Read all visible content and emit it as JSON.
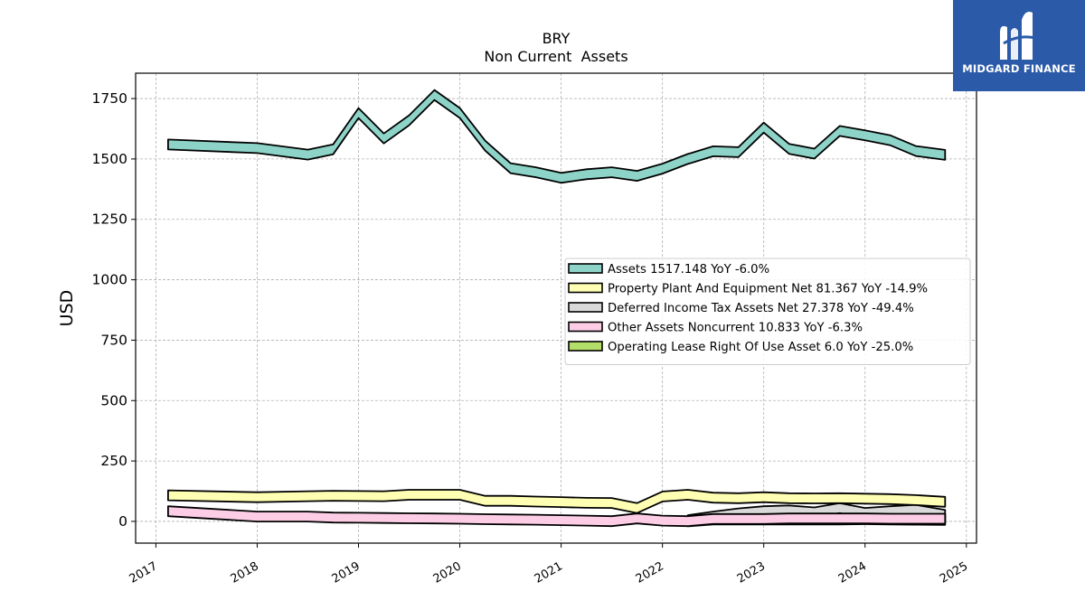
{
  "chart_data": {
    "type": "area",
    "title": "BRY",
    "subtitle": "Non Current  Assets",
    "ylabel": "USD",
    "xlabel": "",
    "xlim": [
      2016.8,
      2025.1
    ],
    "ylim": [
      -90,
      1855
    ],
    "x_ticks": [
      "2017",
      "2018",
      "2019",
      "2020",
      "2021",
      "2022",
      "2023",
      "2024",
      "2025"
    ],
    "y_ticks": [
      0,
      250,
      500,
      750,
      1000,
      1250,
      1500,
      1750
    ],
    "grid": true,
    "legend_position": "center-right",
    "x": [
      2017.12,
      2018.0,
      2018.5,
      2018.75,
      2019.0,
      2019.25,
      2019.5,
      2019.75,
      2020.0,
      2020.25,
      2020.5,
      2020.75,
      2021.0,
      2021.25,
      2021.5,
      2021.75,
      2022.0,
      2022.25,
      2022.5,
      2022.75,
      2023.0,
      2023.25,
      2023.5,
      2023.75,
      2024.0,
      2024.25,
      2024.5,
      2024.79
    ],
    "series": [
      {
        "name": "Assets  1517.148 YoY -6.0%",
        "color": "#8dd3c7",
        "values": [
          1560,
          1545,
          1518,
          1540,
          1690,
          1585,
          1660,
          1765,
          1690,
          1555,
          1462,
          1445,
          1422,
          1437,
          1445,
          1430,
          1460,
          1500,
          1532,
          1528,
          1630,
          1542,
          1522,
          1616,
          1598,
          1577,
          1533,
          1517
        ]
      },
      {
        "name": "Property Plant And Equipment Net  81.367 YoY -14.9%",
        "color": "#ffffb3",
        "values": [
          108,
          100,
          104,
          106,
          105,
          104,
          110,
          110,
          110,
          85,
          85,
          82,
          80,
          77,
          76,
          55,
          103,
          110,
          98,
          96,
          100,
          96,
          95,
          96,
          94,
          92,
          88,
          81
        ]
      },
      {
        "name": "Deferred Income Tax Assets Net  27.378 YoY -49.4%",
        "color": "#d9d9d9",
        "values": [
          null,
          null,
          null,
          null,
          null,
          null,
          null,
          null,
          null,
          null,
          null,
          null,
          null,
          null,
          null,
          null,
          null,
          5,
          20,
          33,
          42,
          45,
          37,
          55,
          35,
          42,
          48,
          27
        ]
      },
      {
        "name": "Other Assets Noncurrent  10.833 YoY -6.3%",
        "color": "#fccde5",
        "values": [
          42,
          20,
          20,
          16,
          15,
          14,
          13,
          12,
          11,
          9,
          8,
          7,
          5,
          3,
          1,
          12,
          3,
          1,
          10,
          10,
          10,
          12,
          12,
          12,
          12,
          11,
          11,
          11
        ]
      },
      {
        "name": "Operating Lease Right Of Use Asset  6.0 YoY -25.0%",
        "color": "#b3de69",
        "values": [
          null,
          null,
          null,
          null,
          null,
          null,
          null,
          null,
          null,
          null,
          null,
          null,
          null,
          null,
          null,
          null,
          null,
          0,
          8,
          8,
          8,
          8,
          8,
          8,
          9,
          8,
          7,
          6
        ]
      }
    ]
  },
  "logo": {
    "text": "MIDGARD FINANCE",
    "color": "#2b5aa8"
  }
}
